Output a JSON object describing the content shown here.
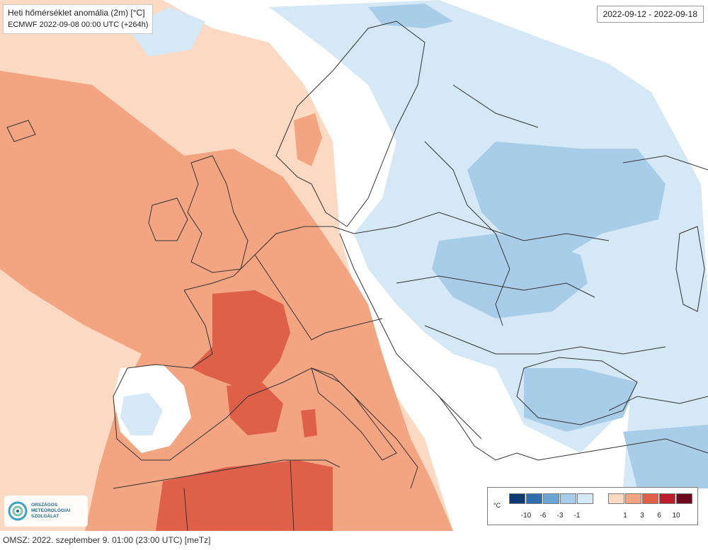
{
  "map": {
    "title": "Heti hőmérséklet anomália (2m) [°C]",
    "subtitle": "ECMWF 2022-09-08 00:00 UTC (+264h)",
    "date_range": "2022-09-12 - 2022-09-18"
  },
  "legend": {
    "unit": "°C",
    "cold_labels": [
      "-10",
      "-6",
      "-3",
      "-1"
    ],
    "warm_labels": [
      "1",
      "3",
      "6",
      "10"
    ],
    "cold_colors": [
      "#0b3b72",
      "#2f6fb0",
      "#6ba5d6",
      "#a8cde9",
      "#d5e8f5"
    ],
    "warm_colors": [
      "#fbd9c3",
      "#f3a582",
      "#de6048",
      "#bb1f2c",
      "#6e0a1e"
    ],
    "neutral_color": "#ffffff"
  },
  "logo": {
    "line1": "ORSZÁGOS",
    "line2": "METEOROLÓGIAI",
    "line3": "SZOLGÁLAT"
  },
  "footer": {
    "text": "OMSZ: 2022. szeptember 9. 01:00 (23:00  UTC)  [meTz]"
  }
}
